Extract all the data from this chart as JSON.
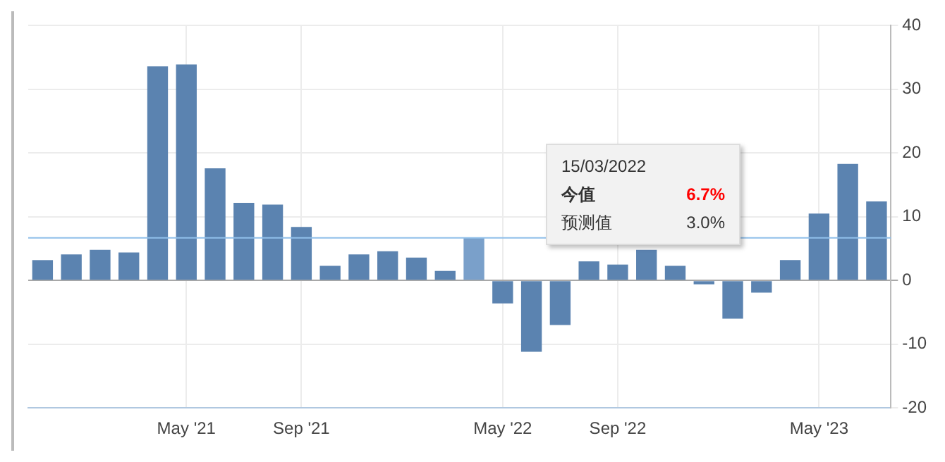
{
  "chart_data": {
    "type": "bar",
    "categories": [
      null,
      null,
      null,
      null,
      null,
      "May '21",
      null,
      null,
      null,
      "Sep '21",
      null,
      null,
      null,
      null,
      null,
      null,
      "May '22",
      null,
      null,
      null,
      "Sep '22",
      null,
      null,
      null,
      null,
      null,
      null,
      "May '23",
      null,
      null
    ],
    "values": [
      3.2,
      4.1,
      4.8,
      4.4,
      33.6,
      33.9,
      17.6,
      12.2,
      11.9,
      8.4,
      2.3,
      4.1,
      4.6,
      3.6,
      1.5,
      6.7,
      -3.6,
      -11.2,
      -7.0,
      3.0,
      2.5,
      4.8,
      2.3,
      -0.6,
      -6.0,
      -1.9,
      3.2,
      10.5,
      18.3,
      12.4
    ],
    "colors": [
      "#5b83b0",
      "#5b83b0",
      "#5b83b0",
      "#5b83b0",
      "#5b83b0",
      "#5b83b0",
      "#5b83b0",
      "#5b83b0",
      "#5b83b0",
      "#5b83b0",
      "#5b83b0",
      "#5b83b0",
      "#5b83b0",
      "#5b83b0",
      "#5b83b0",
      "#7aa0ca",
      "#5b83b0",
      "#5b83b0",
      "#5b83b0",
      "#5b83b0",
      "#5b83b0",
      "#5b83b0",
      "#5b83b0",
      "#5b83b0",
      "#5b83b0",
      "#5b83b0",
      "#5b83b0",
      "#5b83b0",
      "#5b83b0",
      "#5b83b0"
    ],
    "ylim": [
      -20,
      40
    ],
    "yticks": [
      -20,
      -10,
      0,
      10,
      20,
      30,
      40
    ],
    "grid": true,
    "legend": false,
    "ref_lines": [
      {
        "axis": "y",
        "value": 6.7,
        "color": "#90bfea"
      }
    ],
    "annotations": [
      "15/03/2022",
      "今值",
      "6.7%",
      "预测值",
      "3.0%"
    ]
  }
}
